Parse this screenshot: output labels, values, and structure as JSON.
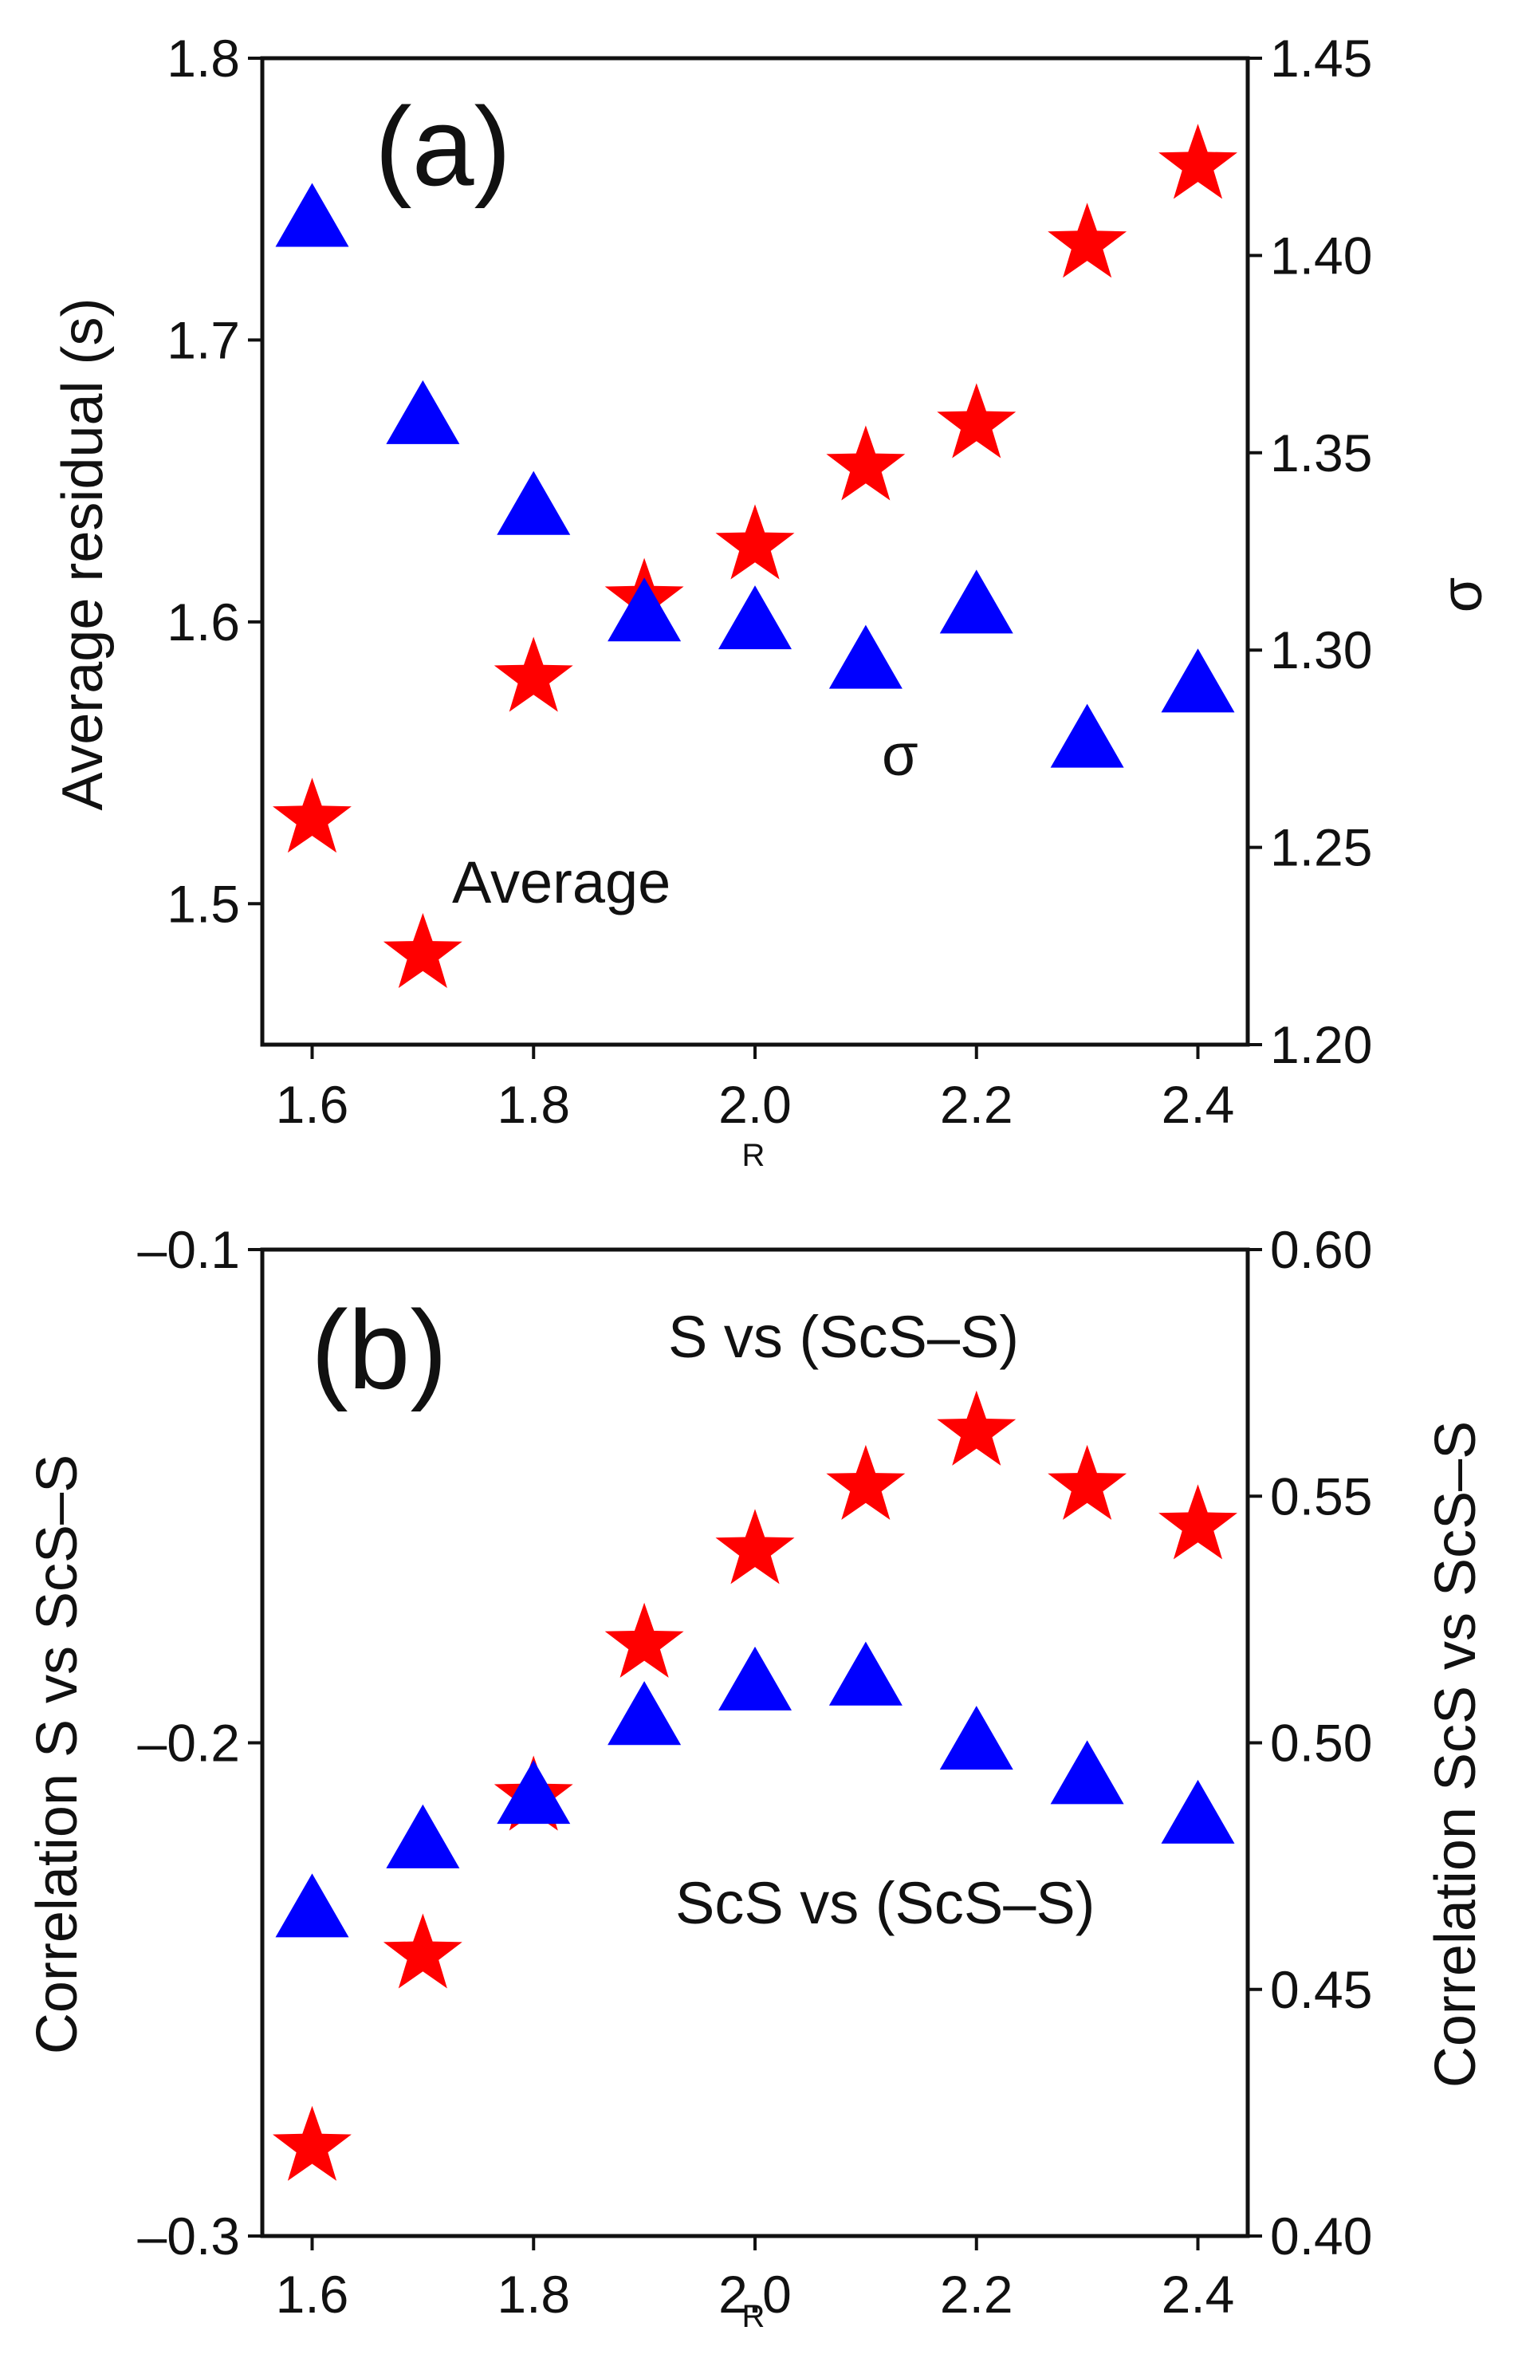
{
  "colors": {
    "average": "#ff0000",
    "sigma": "#0000ff",
    "axis": "#111111",
    "background": "#ffffff"
  },
  "chart_data": [
    {
      "type": "scatter",
      "panel_label": "(a)",
      "title": "",
      "xlabel": "R",
      "ylabel": "Average residual (s)",
      "y2label": "σ",
      "x": [
        1.6,
        1.7,
        1.8,
        1.9,
        2.0,
        2.1,
        2.2,
        2.3,
        2.4
      ],
      "xlim": [
        1.555,
        2.445
      ],
      "xticks": [
        "1.6",
        "1.8",
        "2.0",
        "2.2",
        "2.4"
      ],
      "ylim": [
        1.45,
        1.8
      ],
      "yticks": [
        "1.5",
        "1.6",
        "1.7",
        "1.8"
      ],
      "y2lim": [
        1.2,
        1.45
      ],
      "y2ticks": [
        "1.20",
        "1.25",
        "1.30",
        "1.35",
        "1.40",
        "1.45"
      ],
      "grid": false,
      "series": [
        {
          "name": "Average",
          "marker": "star",
          "axis": "left",
          "label_position": "lower-left",
          "values": [
            1.53,
            1.482,
            1.58,
            1.608,
            1.627,
            1.655,
            1.67,
            1.734,
            1.762
          ]
        },
        {
          "name": "σ",
          "marker": "triangle",
          "axis": "right",
          "label_position": "center-right",
          "values": [
            1.409,
            1.359,
            1.336,
            1.309,
            1.307,
            1.297,
            1.311,
            1.277,
            1.291
          ]
        }
      ]
    },
    {
      "type": "scatter",
      "panel_label": "(b)",
      "title": "",
      "xlabel": "R",
      "ylabel": "Correlation S vs ScS–S",
      "y2label": "Correlation ScS vs ScS–S",
      "x": [
        1.6,
        1.7,
        1.8,
        1.9,
        2.0,
        2.1,
        2.2,
        2.3,
        2.4
      ],
      "xlim": [
        1.555,
        2.445
      ],
      "xticks": [
        "1.6",
        "1.8",
        "2.0",
        "2.2",
        "2.4"
      ],
      "ylim": [
        -0.3,
        -0.1
      ],
      "yticks": [
        "–0.3",
        "–0.2",
        "–0.1"
      ],
      "y2lim": [
        0.4,
        0.6
      ],
      "y2ticks": [
        "0.40",
        "0.45",
        "0.50",
        "0.55",
        "0.60"
      ],
      "grid": false,
      "series": [
        {
          "name": "S vs (ScS–S)",
          "marker": "star",
          "axis": "left",
          "label_position": "top-right",
          "values": [
            -0.282,
            -0.243,
            -0.211,
            -0.18,
            -0.161,
            -0.148,
            -0.137,
            -0.148,
            -0.156
          ]
        },
        {
          "name": "ScS vs (ScS–S)",
          "marker": "triangle",
          "axis": "right",
          "label_position": "lower-right",
          "values": [
            0.466,
            0.48,
            0.489,
            0.505,
            0.512,
            0.513,
            0.5,
            0.493,
            0.485
          ]
        }
      ]
    }
  ]
}
